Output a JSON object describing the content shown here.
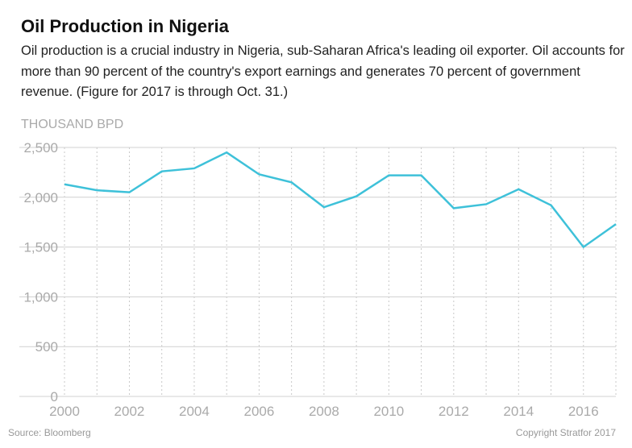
{
  "header": {
    "title": "Oil Production in Nigeria",
    "subtitle": "Oil production is a crucial industry in Nigeria, sub-Saharan Africa's leading oil exporter. Oil accounts for more than 90 percent of the country's export earnings and generates 70 percent of government revenue. (Figure for 2017 is through Oct. 31.)"
  },
  "footer": {
    "source": "Source: Bloomberg",
    "copyright": "Copyright Stratfor 2017"
  },
  "chart_data": {
    "type": "line",
    "title": "Oil Production in Nigeria",
    "ylabel": "THOUSAND BPD",
    "xlabel": "",
    "x": [
      2000,
      2001,
      2002,
      2003,
      2004,
      2005,
      2006,
      2007,
      2008,
      2009,
      2010,
      2011,
      2012,
      2013,
      2014,
      2015,
      2016,
      2017
    ],
    "values": [
      2130,
      2070,
      2050,
      2260,
      2290,
      2450,
      2230,
      2150,
      1900,
      2010,
      2220,
      2220,
      1890,
      1930,
      2080,
      1920,
      1500,
      1730
    ],
    "xlim": [
      2000,
      2017
    ],
    "ylim": [
      0,
      2500
    ],
    "yticks": [
      "0",
      "500",
      "1,000",
      "1,500",
      "2,000",
      "2,500"
    ],
    "xticks": [
      "2000",
      "2002",
      "2004",
      "2006",
      "2008",
      "2010",
      "2012",
      "2014",
      "2016"
    ],
    "grid": "horizontal solid, vertical dotted per year",
    "line_color": "#3ec1d9"
  }
}
